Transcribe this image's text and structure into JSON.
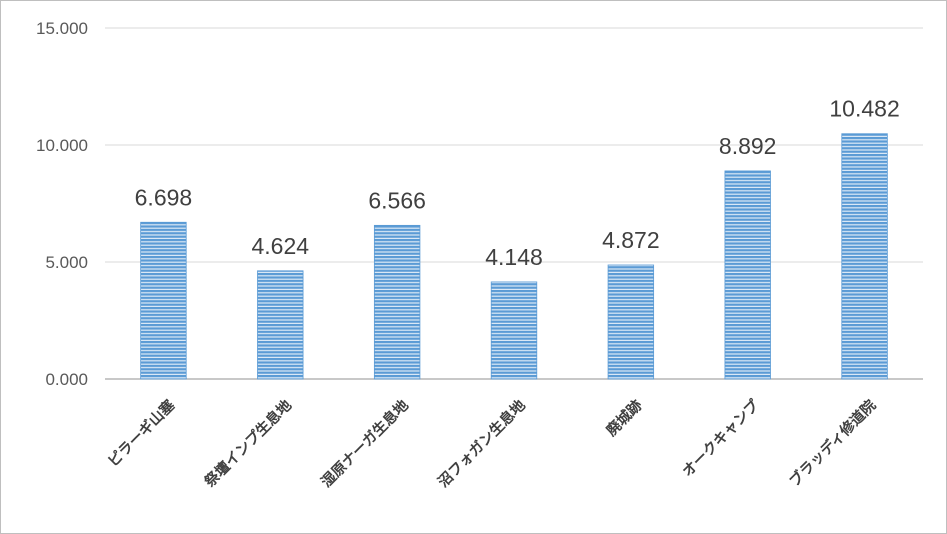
{
  "chart_data": {
    "type": "bar",
    "title": "",
    "xlabel": "",
    "ylabel": "",
    "categories": [
      "ピラーギ山塞",
      "祭壇インプ生息地",
      "湿原ナーガ生息地",
      "沼フォガン生息地",
      "廃城跡",
      "オークキャンプ",
      "ブラッディ修道院"
    ],
    "values": [
      6.698,
      4.624,
      6.566,
      4.148,
      4.872,
      8.892,
      10.482
    ],
    "value_labels": [
      "6.698",
      "4.624",
      "6.566",
      "4.148",
      "4.872",
      "8.892",
      "10.482"
    ],
    "ylim": [
      0,
      15
    ],
    "yticks": [
      0,
      5,
      10,
      15
    ],
    "ytick_labels": [
      "0.000",
      "5.000",
      "10.000",
      "15.000"
    ],
    "grid": true,
    "legend": "none",
    "bar_color": "#5b9bd5",
    "bar_stripe_color": "#ffffff"
  }
}
